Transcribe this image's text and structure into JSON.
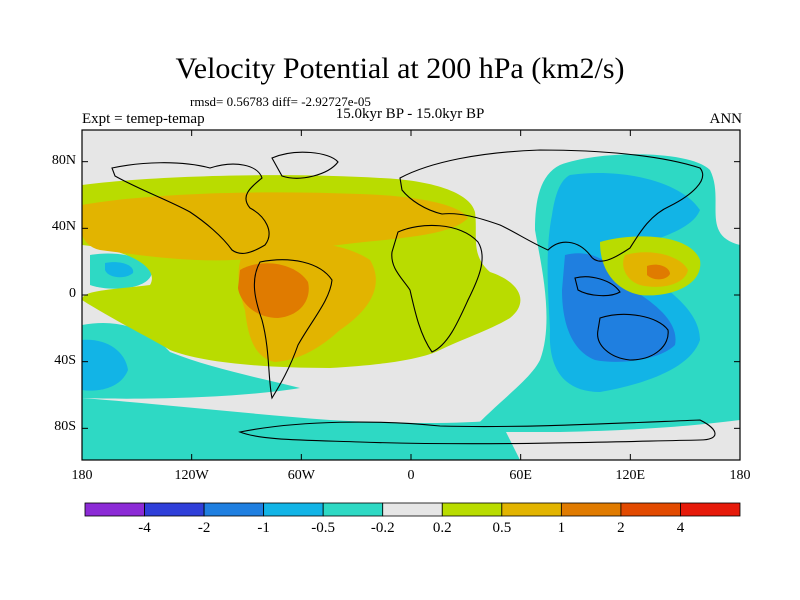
{
  "title": "Velocity Potential at 200 hPa (km2/s)",
  "stats_text": "rmsd= 0.56783 diff= -2.92727e-05",
  "left_label": "Expt = temep-temap",
  "center_label": "15.0kyr BP - 15.0kyr BP",
  "right_label": "ANN",
  "lat_ticks": [
    {
      "label": "80N",
      "value": 80
    },
    {
      "label": "40N",
      "value": 40
    },
    {
      "label": "0",
      "value": 0
    },
    {
      "label": "40S",
      "value": -40
    },
    {
      "label": "80S",
      "value": -80
    }
  ],
  "lon_ticks": [
    {
      "label": "180",
      "value": -180
    },
    {
      "label": "120W",
      "value": -120
    },
    {
      "label": "60W",
      "value": -60
    },
    {
      "label": "0",
      "value": 0
    },
    {
      "label": "60E",
      "value": 60
    },
    {
      "label": "120E",
      "value": 120
    },
    {
      "label": "180",
      "value": 180
    }
  ],
  "colorbar": {
    "colors": [
      "#8c2bd6",
      "#2f3fd9",
      "#1f7fe0",
      "#12b4e6",
      "#2ed9c4",
      "#e6e6e6",
      "#b9dc00",
      "#e2b400",
      "#e07b00",
      "#e24a00",
      "#e61a0a"
    ],
    "labels": [
      "-4",
      "-2",
      "-1",
      "-0.5",
      "-0.2",
      "0.2",
      "0.5",
      "1",
      "2",
      "4"
    ]
  },
  "field_colors": {
    "background": "#e6e6e6",
    "cyan": "#2ed9c4",
    "light_blue": "#12b4e6",
    "blue": "#1f7fe0",
    "green": "#b9dc00",
    "yellow": "#e2b400",
    "orange": "#e07b00",
    "red_orange": "#e24a00"
  }
}
